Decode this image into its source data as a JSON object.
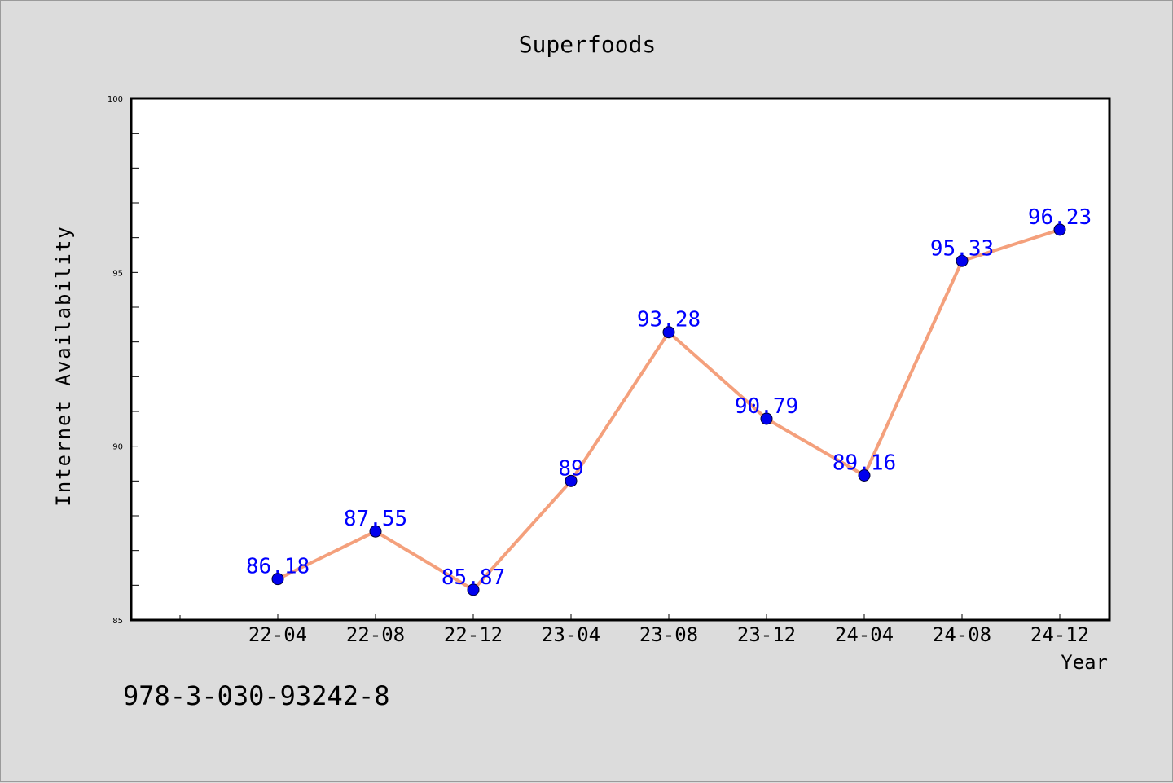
{
  "chart_data": {
    "type": "line",
    "title": "Superfoods",
    "xlabel": "Year",
    "ylabel": "Internet Availability",
    "categories": [
      "22-04",
      "22-08",
      "22-12",
      "23-04",
      "23-08",
      "23-12",
      "24-04",
      "24-08",
      "24-12"
    ],
    "series": [
      {
        "values": [
          86.18,
          87.55,
          85.87,
          89,
          93.28,
          90.79,
          89.16,
          95.33,
          96.23
        ]
      }
    ],
    "ylim": [
      85,
      100
    ],
    "yticks": [
      85,
      90,
      95,
      100
    ],
    "grid": false,
    "legend": "none",
    "colors": {
      "line": "#f4a07c",
      "marker": "#0000ee",
      "label": "#0000ff"
    }
  },
  "footer": {
    "code": "978-3-030-93242-8"
  }
}
